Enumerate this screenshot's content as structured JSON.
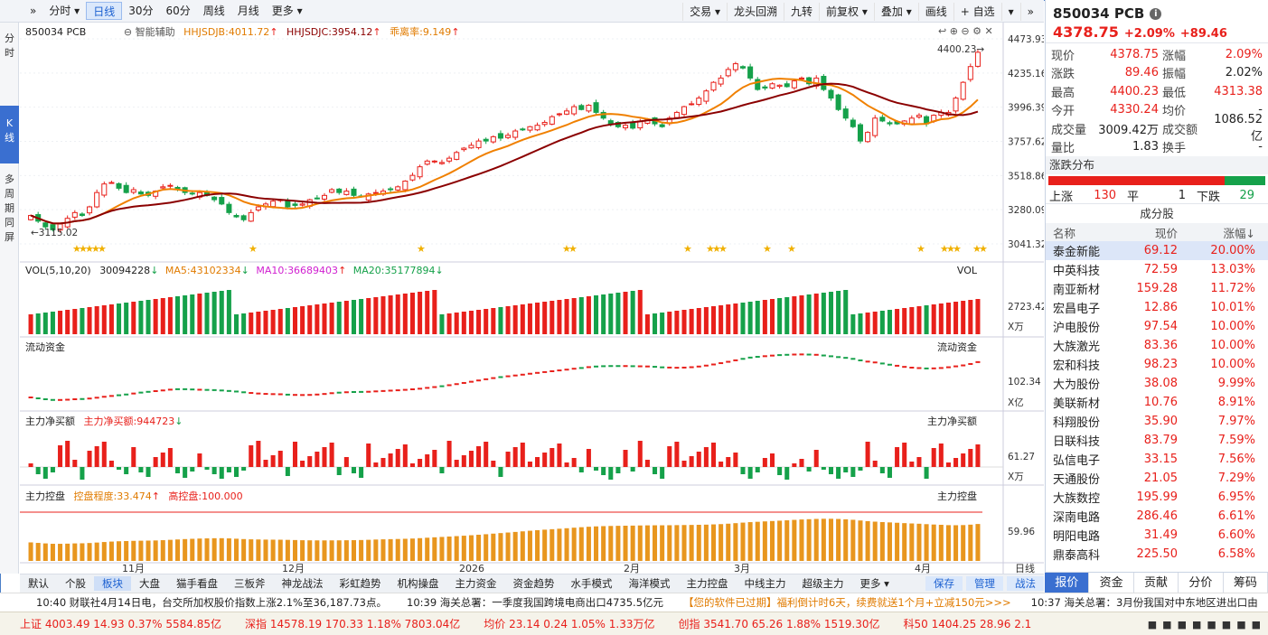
{
  "toolbar": {
    "left": [
      {
        "label": "»",
        "active": false
      },
      {
        "label": "分时 ▾",
        "active": false
      },
      {
        "label": "日线",
        "active": true
      },
      {
        "label": "30分",
        "active": false
      },
      {
        "label": "60分",
        "active": false
      },
      {
        "label": "周线",
        "active": false
      },
      {
        "label": "月线",
        "active": false
      },
      {
        "label": "更多 ▾",
        "active": false
      }
    ],
    "right": [
      "交易 ▾",
      "龙头回溯",
      "九转",
      "前复权 ▾",
      "叠加 ▾",
      "画线",
      "+ 自选",
      "▾",
      "»"
    ]
  },
  "leftbar": [
    "分",
    "时",
    "K",
    "线",
    "多",
    "周",
    "期",
    "同",
    "屏"
  ],
  "main_header": {
    "code_name": "850034 PCB",
    "assist": "智能辅助",
    "hhjsdjb": "HHJSDJB:4011.72",
    "hhjsdjc": "HHJSDJC:3954.12",
    "deviation": "乖离率:9.149"
  },
  "price_axis": [
    "4473.93",
    "4235.16",
    "3996.39",
    "3757.62",
    "3518.86",
    "3280.09",
    "3041.32"
  ],
  "price_marks": {
    "high": "4400.23",
    "low": "3115.02"
  },
  "vol_panel": {
    "header": "VOL(5,10,20)",
    "vol": "30094228",
    "ma5": "MA5:43102334",
    "ma10": "MA10:36689403",
    "ma20": "MA20:35177894",
    "label": "VOL",
    "axis": "2723.42",
    "unit": "X万"
  },
  "flow_panel": {
    "header": "流动资金",
    "label": "流动资金",
    "axis": "102.34",
    "unit": "X亿"
  },
  "net_panel": {
    "header": "主力净买额",
    "value": "主力净买额:944723",
    "label": "主力净买额",
    "axis": "61.27",
    "unit": "X万"
  },
  "ctrl_panel": {
    "header": "主力控盘",
    "degree": "控盘程度:33.474",
    "high": "高控盘:100.000",
    "label": "主力控盘",
    "axis": "59.96"
  },
  "x_axis": [
    "11月",
    "12月",
    "2026",
    "2月",
    "3月",
    "4月"
  ],
  "bottom_tabs": [
    "默认",
    "个股",
    "板块",
    "大盘",
    "猫手看盘",
    "三板斧",
    "神龙战法",
    "彩虹趋势",
    "机构操盘",
    "主力资金",
    "资金趋势",
    "水手模式",
    "海洋模式",
    "主力控盘",
    "中线主力",
    "超级主力",
    "更多 ▾"
  ],
  "bottom_active": "板块",
  "bottom_right": [
    "保存",
    "管理",
    "战法"
  ],
  "bottom_label_day": "日线",
  "news": [
    {
      "text": "10:40 财联社4月14日电，台交所加权股价指数上涨2.1%至36,187.73点。",
      "cls": ""
    },
    {
      "text": "10:39 海关总署：一季度我国跨境电商出口4735.5亿元",
      "cls": ""
    },
    {
      "text": "【您的软件已过期】福利倒计时6天，续费就送1个月+立减150元>>>",
      "cls": "orange"
    },
    {
      "text": "10:37 海关总署：3月份我国对中东地区进出口由",
      "cls": ""
    }
  ],
  "ticker": [
    {
      "name": "上证",
      "v": "4003.49",
      "c": "14.93",
      "p": "0.37%",
      "a": "5584.85亿"
    },
    {
      "name": "深指",
      "v": "14578.19",
      "c": "170.33",
      "p": "1.18%",
      "a": "7803.04亿"
    },
    {
      "name": "均价",
      "v": "23.14",
      "c": "0.24",
      "p": "1.05%",
      "a": "1.33万亿"
    },
    {
      "name": "创指",
      "v": "3541.70",
      "c": "65.26",
      "p": "1.88%",
      "a": "1519.30亿"
    },
    {
      "name": "科50",
      "v": "1404.25",
      "c": "28.96",
      "p": "2.1",
      "a": ""
    }
  ],
  "quote": {
    "title": "850034 PCB",
    "price": "4378.75",
    "pct": "+2.09%",
    "chg": "+89.46",
    "rows": [
      [
        "现价",
        "4378.75",
        "red",
        "涨幅",
        "2.09%",
        "red"
      ],
      [
        "涨跌",
        "89.46",
        "red",
        "振幅",
        "2.02%",
        ""
      ],
      [
        "最高",
        "4400.23",
        "red",
        "最低",
        "4313.38",
        "red"
      ],
      [
        "今开",
        "4330.24",
        "red",
        "均价",
        "-",
        ""
      ],
      [
        "成交量",
        "3009.42万",
        "",
        "成交额",
        "1086.52亿",
        ""
      ],
      [
        "量比",
        "1.83",
        "",
        "换手",
        "-",
        ""
      ]
    ],
    "dist_label": "涨跌分布",
    "up_label": "上涨",
    "up": "130",
    "flat_label": "平",
    "flat": "1",
    "down_label": "下跌",
    "down": "29",
    "up_ratio": 0.8125
  },
  "constituents": {
    "title": "成分股",
    "cols": [
      "名称",
      "现价",
      "涨幅↓"
    ],
    "rows": [
      [
        "泰金新能",
        "69.12",
        "20.00%"
      ],
      [
        "中英科技",
        "72.59",
        "13.03%"
      ],
      [
        "南亚新材",
        "159.28",
        "11.72%"
      ],
      [
        "宏昌电子",
        "12.86",
        "10.01%"
      ],
      [
        "沪电股份",
        "97.54",
        "10.00%"
      ],
      [
        "大族激光",
        "83.36",
        "10.00%"
      ],
      [
        "宏和科技",
        "98.23",
        "10.00%"
      ],
      [
        "大为股份",
        "38.08",
        "9.99%"
      ],
      [
        "美联新材",
        "10.76",
        "8.91%"
      ],
      [
        "科翔股份",
        "35.90",
        "7.97%"
      ],
      [
        "日联科技",
        "83.79",
        "7.59%"
      ],
      [
        "弘信电子",
        "33.15",
        "7.56%"
      ],
      [
        "天通股份",
        "21.05",
        "7.29%"
      ],
      [
        "大族数控",
        "195.99",
        "6.95%"
      ],
      [
        "深南电路",
        "286.46",
        "6.61%"
      ],
      [
        "明阳电路",
        "31.49",
        "6.60%"
      ],
      [
        "鼎泰高科",
        "225.50",
        "6.58%"
      ]
    ]
  },
  "right_tabs": [
    "报价",
    "资金",
    "贡献",
    "分价",
    "筹码"
  ],
  "chart_data": {
    "type": "candlestick",
    "series_close": [
      3240,
      3200,
      3160,
      3140,
      3180,
      3220,
      3260,
      3240,
      3300,
      3400,
      3460,
      3470,
      3430,
      3400,
      3420,
      3390,
      3380,
      3410,
      3440,
      3450,
      3420,
      3400,
      3390,
      3400,
      3380,
      3350,
      3320,
      3260,
      3230,
      3210,
      3260,
      3300,
      3320,
      3340,
      3350,
      3300,
      3310,
      3320,
      3350,
      3360,
      3380,
      3420,
      3400,
      3410,
      3380,
      3370,
      3390,
      3400,
      3410,
      3420,
      3440,
      3480,
      3520,
      3580,
      3620,
      3620,
      3610,
      3640,
      3680,
      3710,
      3730,
      3760,
      3760,
      3790,
      3780,
      3800,
      3830,
      3840,
      3860,
      3870,
      3890,
      3930,
      3950,
      3970,
      4000,
      3980,
      4010,
      3960,
      3920,
      3880,
      3860,
      3870,
      3850,
      3900,
      3910,
      3880,
      3860,
      3920,
      3960,
      4000,
      4020,
      4060,
      4110,
      4170,
      4200,
      4260,
      4300,
      4270,
      4200,
      4120,
      4130,
      4160,
      4150,
      4140,
      4180,
      4200,
      4160,
      4200,
      4120,
      4060,
      3980,
      3920,
      3860,
      3760,
      3820,
      3920,
      3900,
      3880,
      3880,
      3900,
      3920,
      3940,
      3880,
      3940,
      3960,
      3960,
      4060,
      4170,
      4280,
      4380
    ]
  }
}
